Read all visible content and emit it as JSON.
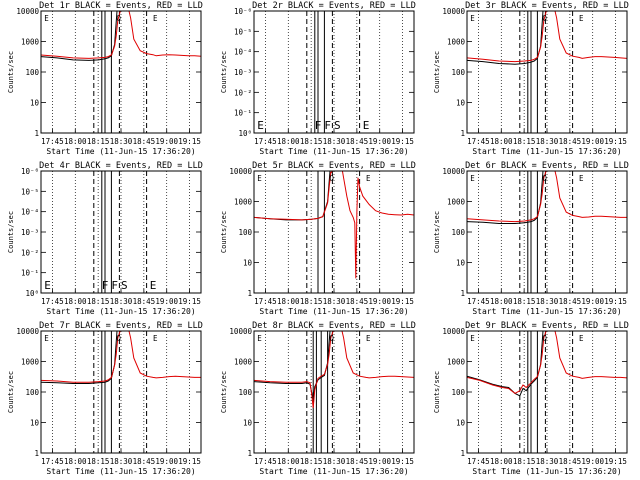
{
  "chart_data": {
    "type": "line",
    "layout": "3x3 grid",
    "x_ticks": [
      "17:45",
      "18:00",
      "18:15",
      "18:30",
      "18:45",
      "19:00",
      "19:15"
    ],
    "xlim": [
      0,
      100
    ],
    "xlabel": "Start Time (11-Jun-15 17:36:20)",
    "ylabel": "Counts/sec",
    "log_y_ticks": [
      "1",
      "10",
      "100",
      "1000",
      "10000"
    ],
    "pow_y_ticks": [
      "10⁰",
      "10⁻¹",
      "10⁻²",
      "10⁻³",
      "10⁻⁴",
      "10⁻⁵",
      "10⁻⁶"
    ],
    "series_legend": {
      "black": "Events",
      "red": "LLD"
    },
    "marker_labels": {
      "F": "F",
      "S": "S",
      "E": "E"
    },
    "panels": [
      {
        "title": "Det 1r BLACK = Events, RED = LLD",
        "scale": "log",
        "solid_lines": [
          38,
          40,
          44
        ],
        "dashed_lines": [
          33,
          49,
          66
        ],
        "peak": "O",
        "black": {
          "x": [
            0,
            10,
            20,
            30,
            36,
            40,
            42,
            44,
            46,
            47.5
          ],
          "y": [
            320,
            290,
            250,
            240,
            250,
            270,
            290,
            340,
            800,
            10000
          ]
        },
        "red": {
          "x": [
            0,
            10,
            20,
            30,
            36,
            40,
            42,
            44,
            46,
            47,
            48,
            50,
            52,
            54,
            55,
            56,
            58,
            62,
            66,
            70,
            72,
            76,
            80,
            84,
            88,
            92,
            96,
            100
          ],
          "y": [
            360,
            330,
            290,
            280,
            290,
            300,
            320,
            360,
            700,
            1500,
            5000,
            14000,
            14000,
            12000,
            10000,
            6000,
            1200,
            500,
            400,
            370,
            340,
            360,
            370,
            360,
            350,
            340,
            340,
            330
          ]
        }
      },
      {
        "title": "Det 2r BLACK = Events, RED = LLD",
        "scale": "pow",
        "solid_lines": [
          38,
          40,
          44
        ],
        "dashed_lines": [
          33,
          49,
          66
        ],
        "letters": [
          {
            "t": "E",
            "x": 2
          },
          {
            "t": "F",
            "x": 38
          },
          {
            "t": "F",
            "x": 44
          },
          {
            "t": "S",
            "x": 50
          },
          {
            "t": "E",
            "x": 68
          }
        ]
      },
      {
        "title": "Det 3r BLACK = Events, RED = LLD",
        "scale": "log",
        "solid_lines": [
          38,
          40,
          44
        ],
        "dashed_lines": [
          33,
          49,
          66
        ],
        "peak": "O",
        "black": {
          "x": [
            0,
            10,
            20,
            30,
            36,
            40,
            42,
            44,
            46,
            47.5
          ],
          "y": [
            240,
            220,
            190,
            180,
            190,
            210,
            230,
            280,
            700,
            10000
          ]
        },
        "red": {
          "x": [
            0,
            10,
            20,
            30,
            36,
            40,
            42,
            44,
            46,
            47,
            48,
            50,
            52,
            54,
            55,
            56,
            58,
            62,
            66,
            70,
            72,
            76,
            80,
            84,
            88,
            92,
            96,
            100
          ],
          "y": [
            290,
            260,
            230,
            220,
            230,
            240,
            260,
            300,
            650,
            1500,
            5000,
            14000,
            14000,
            12000,
            10000,
            6000,
            1200,
            420,
            330,
            300,
            280,
            300,
            320,
            320,
            310,
            300,
            290,
            280
          ]
        }
      },
      {
        "title": "Det 4r BLACK = Events, RED = LLD",
        "scale": "pow",
        "solid_lines": [
          38,
          40,
          44
        ],
        "dashed_lines": [
          33,
          49,
          66
        ],
        "letters": [
          {
            "t": "E",
            "x": 2
          },
          {
            "t": "F",
            "x": 38
          },
          {
            "t": "F",
            "x": 44
          },
          {
            "t": "S",
            "x": 50
          },
          {
            "t": "E",
            "x": 68
          }
        ]
      },
      {
        "title": "Det 5r BLACK = Events, RED = LLD",
        "scale": "log",
        "solid_lines": [
          40,
          44
        ],
        "dashed_lines": [
          33,
          49,
          66
        ],
        "peak": "O",
        "black": {
          "x": [
            0,
            10,
            20,
            30,
            36,
            40,
            43,
            46,
            47.5
          ],
          "y": [
            300,
            270,
            250,
            250,
            260,
            280,
            320,
            1000,
            10000
          ]
        },
        "red": {
          "x": [
            0,
            10,
            20,
            30,
            36,
            40,
            43,
            46,
            47,
            48,
            48.5,
            49,
            50,
            52,
            54,
            55,
            56,
            58,
            60,
            62,
            63,
            63.6,
            64.3,
            65,
            66,
            68,
            72,
            76,
            80,
            84,
            88,
            92,
            96,
            100
          ],
          "y": [
            300,
            270,
            260,
            250,
            260,
            280,
            320,
            900,
            3000,
            9000,
            9000,
            12000,
            14000,
            14000,
            13000,
            12000,
            6000,
            1500,
            500,
            300,
            200,
            3,
            500,
            6000,
            3000,
            1500,
            800,
            500,
            420,
            380,
            370,
            360,
            380,
            360
          ]
        }
      },
      {
        "title": "Det 6r BLACK = Events, RED = LLD",
        "scale": "log",
        "solid_lines": [
          38,
          40,
          44
        ],
        "dashed_lines": [
          33,
          49,
          66
        ],
        "peak": "O",
        "black": {
          "x": [
            0,
            10,
            20,
            30,
            36,
            40,
            42,
            44,
            46,
            47.5
          ],
          "y": [
            220,
            210,
            190,
            190,
            200,
            220,
            240,
            300,
            900,
            10000
          ]
        },
        "red": {
          "x": [
            0,
            10,
            20,
            30,
            36,
            40,
            42,
            44,
            46,
            47,
            48,
            50,
            52,
            54,
            55,
            56,
            58,
            62,
            66,
            70,
            72,
            76,
            80,
            84,
            88,
            92,
            96,
            100
          ],
          "y": [
            270,
            250,
            230,
            220,
            230,
            250,
            270,
            320,
            800,
            1800,
            6000,
            14000,
            14000,
            12000,
            10000,
            6000,
            1300,
            450,
            350,
            320,
            300,
            310,
            330,
            330,
            320,
            310,
            300,
            300
          ]
        }
      },
      {
        "title": "Det 7r BLACK = Events, RED = LLD",
        "scale": "log",
        "solid_lines": [
          38,
          40,
          44
        ],
        "dashed_lines": [
          33,
          49,
          66
        ],
        "peak": "O",
        "black": {
          "x": [
            0,
            10,
            20,
            30,
            36,
            40,
            42,
            44,
            46,
            47.5
          ],
          "y": [
            210,
            200,
            190,
            190,
            200,
            210,
            230,
            280,
            800,
            10000
          ]
        },
        "red": {
          "x": [
            0,
            10,
            20,
            30,
            36,
            40,
            42,
            44,
            46,
            47,
            48,
            50,
            52,
            54,
            55,
            56,
            58,
            62,
            66,
            70,
            72,
            76,
            80,
            84,
            88,
            92,
            96,
            100
          ],
          "y": [
            240,
            230,
            210,
            210,
            220,
            230,
            250,
            300,
            750,
            1700,
            6000,
            14000,
            14000,
            12000,
            10000,
            6000,
            1300,
            420,
            330,
            300,
            290,
            300,
            320,
            330,
            320,
            310,
            300,
            300
          ]
        }
      },
      {
        "title": "Det 8r BLACK = Events, RED = LLD",
        "scale": "log",
        "solid_lines": [
          37,
          39,
          42,
          46
        ],
        "dashed_lines": [
          33,
          49,
          66
        ],
        "peak": "O",
        "black": {
          "x": [
            0,
            10,
            20,
            30,
            33,
            35,
            36,
            37,
            38,
            40,
            42,
            44,
            46,
            47.5
          ],
          "y": [
            220,
            200,
            190,
            190,
            200,
            180,
            100,
            60,
            150,
            250,
            300,
            350,
            900,
            10000
          ]
        },
        "red": {
          "x": [
            0,
            10,
            20,
            30,
            33,
            35,
            36,
            37,
            38,
            40,
            42,
            44,
            46,
            47,
            48,
            50,
            52,
            54,
            55,
            56,
            58,
            62,
            66,
            70,
            72,
            76,
            80,
            84,
            88,
            92,
            96,
            100
          ],
          "y": [
            240,
            220,
            210,
            210,
            220,
            200,
            90,
            30,
            120,
            280,
            330,
            380,
            800,
            1800,
            6000,
            14000,
            14000,
            12000,
            10000,
            6000,
            1300,
            420,
            330,
            300,
            290,
            300,
            320,
            330,
            330,
            320,
            310,
            300
          ]
        }
      },
      {
        "title": "Det 9r BLACK = Events, RED = LLD",
        "scale": "log",
        "solid_lines": [
          38,
          40,
          44
        ],
        "dashed_lines": [
          33,
          49,
          66
        ],
        "peak": "O",
        "black": {
          "x": [
            0,
            8,
            16,
            22,
            26,
            30,
            33,
            35,
            37,
            40,
            42,
            44,
            46,
            47.5
          ],
          "y": [
            330,
            250,
            180,
            150,
            140,
            90,
            75,
            130,
            110,
            180,
            230,
            300,
            800,
            10000
          ]
        },
        "red": {
          "x": [
            0,
            8,
            16,
            22,
            26,
            30,
            33,
            35,
            37,
            40,
            42,
            44,
            46,
            47,
            48,
            50,
            52,
            54,
            55,
            56,
            58,
            62,
            66,
            70,
            72,
            76,
            80,
            84,
            88,
            92,
            96,
            100
          ],
          "y": [
            300,
            240,
            170,
            140,
            130,
            90,
            110,
            170,
            140,
            200,
            260,
            320,
            750,
            1700,
            6000,
            14000,
            14000,
            12000,
            10000,
            6000,
            1300,
            420,
            330,
            300,
            280,
            300,
            320,
            320,
            310,
            300,
            300,
            290
          ]
        }
      }
    ]
  }
}
